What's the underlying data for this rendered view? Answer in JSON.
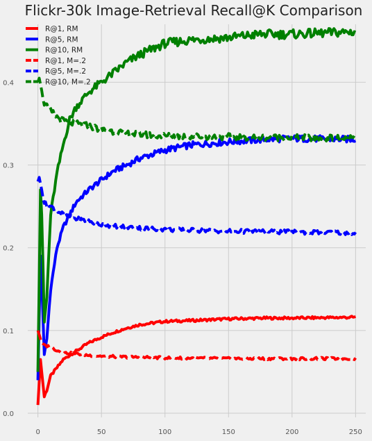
{
  "chart_data": {
    "type": "line",
    "title": "Flickr-30k Image-Retrieval Recall@K Comparison",
    "xlabel": "",
    "ylabel": "",
    "xlim": [
      -8,
      258
    ],
    "ylim": [
      -0.005,
      0.47
    ],
    "xticks": [
      0,
      50,
      100,
      150,
      200,
      250
    ],
    "yticks": [
      0.0,
      0.1,
      0.2,
      0.3,
      0.4
    ],
    "grid": true,
    "legend_position": "top-left",
    "series": [
      {
        "name": "R@1, RM",
        "color": "#ff0000",
        "dash": "solid",
        "x": [
          0,
          2,
          3,
          5,
          7,
          10,
          15,
          20,
          30,
          40,
          50,
          60,
          70,
          80,
          90,
          100,
          120,
          150,
          180,
          200,
          250
        ],
        "y": [
          0.01,
          0.065,
          0.05,
          0.02,
          0.028,
          0.045,
          0.055,
          0.065,
          0.075,
          0.085,
          0.092,
          0.098,
          0.103,
          0.107,
          0.109,
          0.111,
          0.112,
          0.114,
          0.115,
          0.115,
          0.116
        ]
      },
      {
        "name": "R@5, RM",
        "color": "#0000ff",
        "dash": "solid",
        "x": [
          0,
          2,
          3,
          5,
          7,
          10,
          15,
          20,
          30,
          40,
          50,
          60,
          70,
          80,
          100,
          120,
          150,
          180,
          200,
          250
        ],
        "y": [
          0.04,
          0.19,
          0.16,
          0.07,
          0.09,
          0.15,
          0.2,
          0.225,
          0.255,
          0.27,
          0.282,
          0.293,
          0.3,
          0.308,
          0.318,
          0.324,
          0.328,
          0.331,
          0.332,
          0.331
        ]
      },
      {
        "name": "R@10, RM",
        "color": "#008000",
        "dash": "solid",
        "x": [
          0,
          2,
          3,
          5,
          7,
          10,
          15,
          20,
          25,
          30,
          40,
          50,
          60,
          70,
          80,
          90,
          100,
          120,
          150,
          175,
          200,
          250
        ],
        "y": [
          0.05,
          0.27,
          0.24,
          0.11,
          0.14,
          0.24,
          0.29,
          0.325,
          0.355,
          0.37,
          0.388,
          0.4,
          0.412,
          0.424,
          0.433,
          0.44,
          0.447,
          0.451,
          0.454,
          0.458,
          0.458,
          0.461
        ]
      },
      {
        "name": "R@1, M=.2",
        "color": "#ff0000",
        "dash": "dashed",
        "x": [
          0,
          1,
          3,
          5,
          10,
          15,
          20,
          30,
          40,
          50,
          70,
          100,
          150,
          200,
          250
        ],
        "y": [
          0.1,
          0.095,
          0.085,
          0.082,
          0.08,
          0.076,
          0.073,
          0.072,
          0.07,
          0.069,
          0.068,
          0.067,
          0.066,
          0.066,
          0.066
        ]
      },
      {
        "name": "R@5, M=.2",
        "color": "#0000ff",
        "dash": "dashed",
        "x": [
          0,
          1,
          3,
          5,
          7,
          10,
          15,
          20,
          30,
          40,
          50,
          70,
          100,
          150,
          200,
          250
        ],
        "y": [
          0.28,
          0.285,
          0.27,
          0.255,
          0.25,
          0.25,
          0.245,
          0.24,
          0.235,
          0.232,
          0.228,
          0.225,
          0.222,
          0.22,
          0.219,
          0.218
        ]
      },
      {
        "name": "R@10, M=.2",
        "color": "#008000",
        "dash": "dashed",
        "x": [
          0,
          1,
          3,
          5,
          7,
          10,
          15,
          20,
          30,
          40,
          50,
          70,
          100,
          150,
          200,
          250
        ],
        "y": [
          0.4,
          0.405,
          0.39,
          0.375,
          0.37,
          0.365,
          0.358,
          0.353,
          0.35,
          0.347,
          0.343,
          0.338,
          0.335,
          0.334,
          0.333,
          0.332
        ]
      }
    ]
  }
}
